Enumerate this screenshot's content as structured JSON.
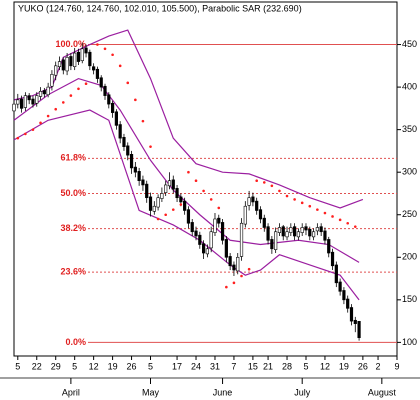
{
  "chart_data": {
    "type": "candlestick",
    "title": "YUKO (124.760, 124.760, 102.010, 105.500), Parabolic SAR (232.690)",
    "xlim": [
      0,
      101
    ],
    "ylim": [
      84,
      500
    ],
    "xticks": [
      {
        "value": 1,
        "label": "5"
      },
      {
        "value": 6,
        "label": "22"
      },
      {
        "value": 11,
        "label": "29"
      },
      {
        "value": 16,
        "label": "5"
      },
      {
        "value": 21,
        "label": "12"
      },
      {
        "value": 26,
        "label": "19"
      },
      {
        "value": 31,
        "label": "26"
      },
      {
        "value": 36,
        "label": "5"
      },
      {
        "value": 43,
        "label": "17"
      },
      {
        "value": 48,
        "label": "24"
      },
      {
        "value": 53,
        "label": "31"
      },
      {
        "value": 58,
        "label": "7"
      },
      {
        "value": 63,
        "label": "15"
      },
      {
        "value": 67,
        "label": "21"
      },
      {
        "value": 72,
        "label": "28"
      },
      {
        "value": 77,
        "label": "5"
      },
      {
        "value": 82,
        "label": "12"
      },
      {
        "value": 87,
        "label": "19"
      },
      {
        "value": 92,
        "label": "26"
      },
      {
        "value": 96,
        "label": "2"
      },
      {
        "value": 101,
        "label": "9"
      }
    ],
    "months": [
      {
        "value": 15,
        "label": "April"
      },
      {
        "value": 36,
        "label": "May"
      },
      {
        "value": 55,
        "label": "June"
      },
      {
        "value": 76,
        "label": "July"
      },
      {
        "value": 97,
        "label": "August"
      }
    ],
    "yticks": [
      100,
      150,
      200,
      250,
      300,
      350,
      400,
      450
    ],
    "up_color": "#ffffff",
    "down_color": "#000000",
    "open": [
      372,
      380,
      386,
      376,
      390,
      386,
      381,
      389,
      396,
      391,
      401,
      414,
      424,
      432,
      419,
      436,
      424,
      441,
      431,
      446,
      441,
      424,
      421,
      411,
      401,
      391,
      381,
      371,
      356,
      341,
      331,
      321,
      306,
      301,
      291,
      286,
      271,
      254,
      259,
      269,
      276,
      284,
      291,
      281,
      271,
      266,
      256,
      241,
      231,
      226,
      216,
      204,
      211,
      229,
      246,
      241,
      221,
      201,
      191,
      184,
      201,
      239,
      261,
      271,
      266,
      256,
      246,
      236,
      221,
      209,
      229,
      236,
      224,
      229,
      236,
      224,
      229,
      236,
      233,
      224,
      231,
      236,
      231,
      221,
      206,
      191,
      171,
      161,
      151,
      141,
      126,
      124.76
    ],
    "high": [
      388,
      392,
      390,
      394,
      393,
      390,
      394,
      400,
      399,
      405,
      420,
      430,
      436,
      435,
      440,
      440,
      446,
      445,
      452,
      450,
      444,
      428,
      424,
      414,
      404,
      394,
      384,
      374,
      360,
      345,
      335,
      325,
      312,
      305,
      296,
      290,
      276,
      266,
      274,
      282,
      290,
      300,
      296,
      285,
      275,
      270,
      260,
      245,
      236,
      230,
      220,
      215,
      236,
      252,
      250,
      245,
      225,
      205,
      195,
      205,
      246,
      266,
      278,
      276,
      270,
      260,
      250,
      240,
      225,
      235,
      240,
      238,
      236,
      240,
      240,
      234,
      240,
      240,
      236,
      234,
      240,
      240,
      235,
      224,
      210,
      195,
      175,
      165,
      155,
      145,
      130,
      124.76
    ],
    "low": [
      366,
      375,
      370,
      372,
      380,
      376,
      377,
      385,
      388,
      388,
      396,
      408,
      420,
      415,
      414,
      420,
      420,
      426,
      428,
      435,
      420,
      415,
      405,
      395,
      385,
      375,
      364,
      350,
      334,
      325,
      314,
      298,
      294,
      284,
      278,
      264,
      248,
      250,
      255,
      265,
      272,
      280,
      275,
      265,
      260,
      250,
      234,
      225,
      220,
      210,
      198,
      200,
      206,
      225,
      235,
      215,
      194,
      185,
      178,
      180,
      196,
      235,
      255,
      260,
      250,
      240,
      230,
      215,
      204,
      205,
      225,
      220,
      220,
      225,
      220,
      220,
      225,
      226,
      220,
      220,
      226,
      225,
      215,
      200,
      185,
      165,
      155,
      145,
      135,
      120,
      112,
      102.01
    ],
    "close": [
      380,
      385,
      375,
      390,
      385,
      380,
      390,
      395,
      392,
      400,
      415,
      425,
      430,
      420,
      435,
      425,
      440,
      430,
      445,
      440,
      425,
      420,
      410,
      400,
      390,
      380,
      370,
      355,
      340,
      330,
      320,
      305,
      300,
      290,
      285,
      270,
      255,
      260,
      270,
      275,
      285,
      290,
      280,
      270,
      265,
      255,
      240,
      230,
      225,
      215,
      205,
      210,
      230,
      245,
      240,
      220,
      200,
      190,
      185,
      200,
      240,
      260,
      270,
      265,
      255,
      245,
      235,
      220,
      210,
      230,
      235,
      225,
      230,
      235,
      225,
      230,
      235,
      232,
      225,
      230,
      235,
      230,
      220,
      205,
      190,
      170,
      160,
      150,
      140,
      125,
      122,
      105.5
    ],
    "bands": [
      {
        "color": "#9b1fa0",
        "x": [
          0,
          5,
          10,
          13,
          20,
          25,
          30,
          36,
          42,
          48,
          55,
          62,
          70,
          78,
          86,
          92
        ],
        "values": [
          385,
          390,
          400,
          435,
          450,
          460,
          467,
          410,
          340,
          310,
          300,
          298,
          285,
          270,
          258,
          268
        ]
      },
      {
        "color": "#9b1fa0",
        "x": [
          0,
          9,
          17,
          23,
          28,
          36,
          42,
          49,
          57,
          65,
          75,
          83,
          91
        ],
        "values": [
          361,
          391,
          410,
          402,
          373,
          314,
          279,
          250,
          220,
          215,
          220,
          215,
          194
        ]
      },
      {
        "color": "#9b1fa0",
        "x": [
          0,
          9,
          20,
          25,
          33,
          42,
          49,
          57,
          61,
          65,
          70,
          78,
          86,
          91
        ],
        "values": [
          338,
          361,
          373,
          361,
          255,
          238,
          220,
          191,
          179,
          185,
          203,
          191,
          179,
          150
        ]
      }
    ],
    "sar": {
      "color": "#ff2020",
      "x": [
        1,
        3,
        5,
        7,
        9,
        11,
        13,
        15,
        17,
        19,
        22,
        24,
        26,
        28,
        30,
        32,
        34,
        36,
        38,
        40,
        42,
        44,
        46,
        48,
        50,
        52,
        54,
        56,
        58,
        60,
        62,
        64,
        66,
        68,
        70,
        72,
        74,
        76,
        78,
        80,
        82,
        84,
        86,
        88,
        90
      ],
      "values": [
        340,
        345,
        350,
        358,
        366,
        374,
        382,
        390,
        398,
        404,
        450,
        445,
        438,
        425,
        405,
        385,
        360,
        330,
        245,
        250,
        256,
        262,
        300,
        290,
        278,
        268,
        258,
        165,
        170,
        178,
        186,
        290,
        288,
        284,
        278,
        272,
        268,
        264,
        260,
        256,
        252,
        248,
        244,
        240,
        236
      ]
    },
    "levels": [
      {
        "value": 450,
        "label": "100.0%"
      },
      {
        "value": 316.3,
        "label": "61.8%"
      },
      {
        "value": 275,
        "label": "50.0%"
      },
      {
        "value": 233.7,
        "label": "38.2%"
      },
      {
        "value": 182.6,
        "label": "23.6%"
      },
      {
        "value": 100,
        "label": "0.0%"
      }
    ],
    "level_color": "#e05050"
  }
}
